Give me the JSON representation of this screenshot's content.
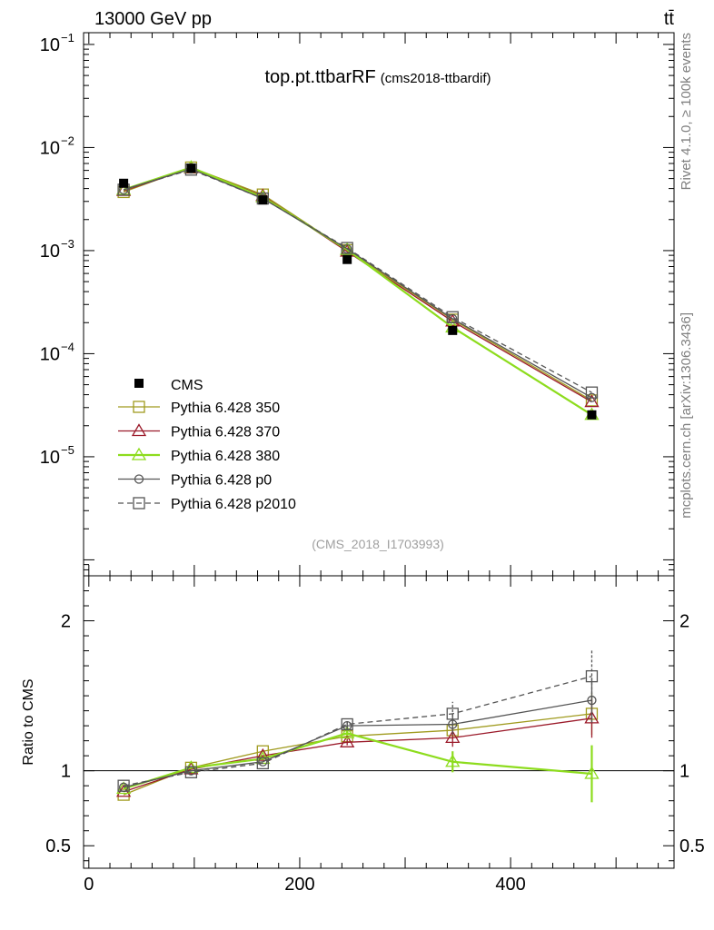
{
  "header": {
    "energy_label": "13000 GeV pp",
    "process_label": "tt̄"
  },
  "side_labels": {
    "rivet": "Rivet 4.1.0, ≥ 100k events",
    "mcplots": "mcplots.cern.ch [arXiv:1306.3436]"
  },
  "chart_data": {
    "type": "line",
    "title": "top.pt.ttbarRF",
    "subtitle": "(cms2018-ttbardif)",
    "analysis_label": "(CMS_2018_I1703993)",
    "xlabel": "",
    "xlim": [
      -5,
      555
    ],
    "main": {
      "ylabel": "",
      "yscale": "log",
      "ylim": [
        7e-07,
        0.13
      ],
      "yticks": [
        {
          "v": 0.1,
          "base": "10",
          "exp": "−1"
        },
        {
          "v": 0.01,
          "base": "10",
          "exp": "−2"
        },
        {
          "v": 0.001,
          "base": "10",
          "exp": "−3"
        },
        {
          "v": 0.0001,
          "base": "10",
          "exp": "−4"
        },
        {
          "v": 1e-05,
          "base": "10",
          "exp": "−5"
        }
      ]
    },
    "ratio": {
      "ylabel": "Ratio to CMS",
      "ylim": [
        0.35,
        2.3
      ],
      "yticks": [
        {
          "v": 2,
          "label": "2"
        },
        {
          "v": 1,
          "label": "1"
        },
        {
          "v": 0.5,
          "label": "0.5"
        }
      ]
    },
    "xticks": [
      {
        "v": 0,
        "label": "0"
      },
      {
        "v": 200,
        "label": "200"
      },
      {
        "v": 400,
        "label": "400"
      }
    ],
    "x": [
      33,
      97,
      165,
      245,
      345,
      477
    ],
    "data": {
      "name": "CMS",
      "values": [
        0.0045,
        0.0063,
        0.0031,
        0.00082,
        0.000168,
        2.55e-05
      ]
    },
    "series": [
      {
        "name": "Pythia 6.428 350",
        "color": "#a09b1f",
        "marker": "square-open",
        "dashed": false,
        "width": 1.3,
        "values": [
          0.0037,
          0.0064,
          0.0035,
          0.00101,
          0.000214,
          3.52e-05
        ],
        "ratio": [
          0.84,
          1.02,
          1.13,
          1.23,
          1.27,
          1.38
        ],
        "ratio_err": [
          0.01,
          0.01,
          0.01,
          0.02,
          0.06,
          0.14
        ]
      },
      {
        "name": "Pythia 6.428 370",
        "color": "#9b1a2a",
        "marker": "triangle-open",
        "dashed": false,
        "width": 1.3,
        "values": [
          0.0038,
          0.0063,
          0.0034,
          0.00098,
          0.000206,
          3.4e-05
        ],
        "ratio": [
          0.86,
          1.01,
          1.1,
          1.19,
          1.22,
          1.35
        ],
        "ratio_err": [
          0.01,
          0.01,
          0.01,
          0.02,
          0.06,
          0.13
        ]
      },
      {
        "name": "Pythia 6.428 380",
        "color": "#8ddc1d",
        "marker": "triangle-open",
        "dashed": false,
        "width": 2.2,
        "values": [
          0.0039,
          0.0064,
          0.0033,
          0.00102,
          0.00018,
          2.55e-05
        ],
        "ratio": [
          0.88,
          1.02,
          1.08,
          1.25,
          1.06,
          0.98
        ],
        "ratio_err": [
          0.01,
          0.01,
          0.01,
          0.02,
          0.07,
          0.19
        ]
      },
      {
        "name": "Pythia 6.428 p0",
        "color": "#555555",
        "marker": "circle-open",
        "dashed": false,
        "width": 1.3,
        "values": [
          0.0039,
          0.0062,
          0.0032,
          0.00104,
          0.000218,
          3.75e-05
        ],
        "ratio": [
          0.89,
          1.0,
          1.06,
          1.3,
          1.31,
          1.47
        ],
        "ratio_err": [
          0.01,
          0.01,
          0.01,
          0.03,
          0.07,
          0.15
        ]
      },
      {
        "name": "Pythia 6.428 p2010",
        "color": "#555555",
        "marker": "square-open",
        "dashed": true,
        "width": 1.3,
        "values": [
          0.0039,
          0.0061,
          0.0032,
          0.00106,
          0.000226,
          4.2e-05
        ],
        "ratio": [
          0.9,
          0.99,
          1.05,
          1.31,
          1.38,
          1.63
        ],
        "ratio_err": [
          0.01,
          0.01,
          0.01,
          0.03,
          0.08,
          0.18
        ]
      }
    ]
  }
}
